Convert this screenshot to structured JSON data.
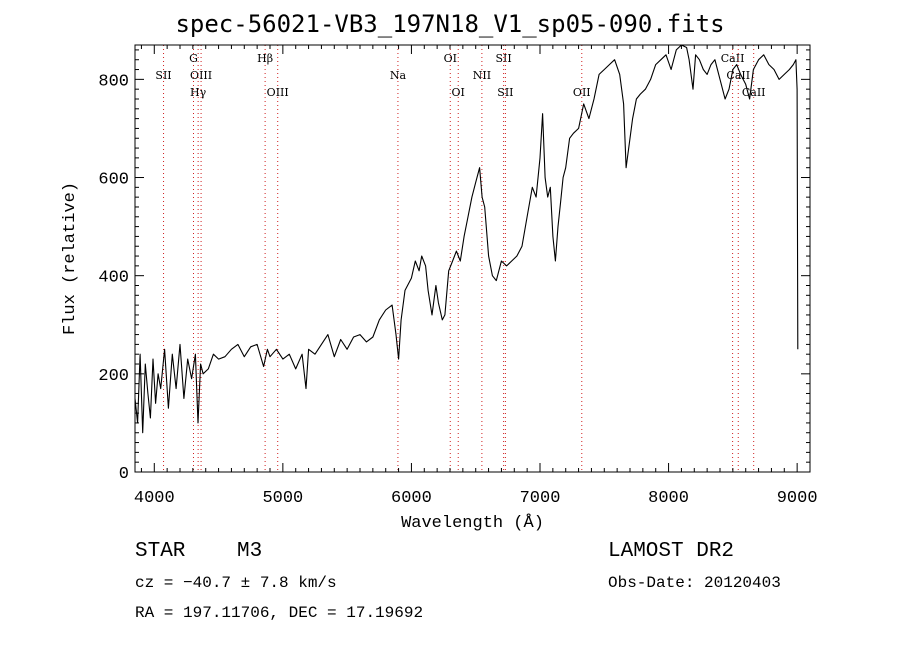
{
  "header": {
    "title": "spec-56021-VB3_197N18_V1_sp05-090.fits"
  },
  "footer": {
    "object_class": "STAR",
    "subclass": "M3",
    "survey": "LAMOST DR2",
    "redshift_text": "cz = −40.7 ± 7.8 km/s",
    "obs_date": "Obs-Date: 20120403",
    "coords": "RA = 197.11706, DEC =  17.19692"
  },
  "chart_data": {
    "type": "line",
    "title": "spec-56021-VB3_197N18_V1_sp05-090.fits",
    "xlabel": "Wavelength (Å)",
    "ylabel": "Flux (relative)",
    "xlim": [
      3850,
      9100
    ],
    "ylim": [
      0,
      870
    ],
    "xticks": [
      4000,
      5000,
      6000,
      7000,
      8000,
      9000
    ],
    "yticks": [
      0,
      200,
      400,
      600,
      800
    ],
    "series": [
      {
        "name": "flux",
        "x": [
          3850,
          3870,
          3890,
          3910,
          3930,
          3950,
          3970,
          3990,
          4010,
          4030,
          4050,
          4080,
          4110,
          4140,
          4170,
          4200,
          4230,
          4260,
          4290,
          4320,
          4340,
          4360,
          4380,
          4420,
          4460,
          4500,
          4550,
          4600,
          4650,
          4700,
          4750,
          4800,
          4850,
          4880,
          4900,
          4950,
          5000,
          5050,
          5100,
          5150,
          5180,
          5200,
          5250,
          5300,
          5350,
          5400,
          5450,
          5500,
          5550,
          5600,
          5650,
          5700,
          5750,
          5800,
          5850,
          5880,
          5900,
          5920,
          5950,
          6000,
          6030,
          6060,
          6080,
          6110,
          6130,
          6160,
          6190,
          6210,
          6240,
          6260,
          6290,
          6320,
          6350,
          6380,
          6410,
          6440,
          6470,
          6500,
          6530,
          6550,
          6570,
          6600,
          6630,
          6660,
          6700,
          6740,
          6780,
          6820,
          6860,
          6900,
          6940,
          6970,
          7000,
          7020,
          7040,
          7060,
          7080,
          7100,
          7120,
          7140,
          7160,
          7180,
          7200,
          7230,
          7260,
          7300,
          7340,
          7380,
          7420,
          7460,
          7500,
          7540,
          7580,
          7620,
          7650,
          7670,
          7700,
          7720,
          7750,
          7780,
          7820,
          7860,
          7900,
          7940,
          7980,
          8020,
          8060,
          8100,
          8140,
          8160,
          8190,
          8210,
          8240,
          8270,
          8300,
          8330,
          8360,
          8400,
          8440,
          8470,
          8500,
          8530,
          8560,
          8600,
          8630,
          8660,
          8700,
          8740,
          8780,
          8820,
          8860,
          8900,
          8940,
          8970,
          8990,
          9000,
          9005
        ],
        "y": [
          150,
          100,
          240,
          80,
          220,
          160,
          110,
          230,
          140,
          200,
          170,
          250,
          130,
          240,
          170,
          260,
          150,
          230,
          190,
          240,
          100,
          220,
          200,
          210,
          240,
          230,
          235,
          250,
          260,
          235,
          255,
          260,
          215,
          250,
          235,
          250,
          230,
          240,
          210,
          240,
          170,
          250,
          240,
          260,
          280,
          235,
          270,
          250,
          275,
          280,
          265,
          275,
          310,
          330,
          340,
          280,
          230,
          310,
          370,
          395,
          430,
          410,
          440,
          420,
          370,
          320,
          380,
          345,
          310,
          320,
          410,
          430,
          450,
          430,
          480,
          520,
          560,
          590,
          620,
          560,
          540,
          440,
          400,
          390,
          430,
          420,
          430,
          440,
          460,
          520,
          580,
          560,
          640,
          730,
          600,
          560,
          580,
          480,
          430,
          500,
          550,
          600,
          620,
          680,
          690,
          700,
          750,
          720,
          760,
          810,
          820,
          830,
          840,
          810,
          750,
          620,
          680,
          720,
          760,
          770,
          780,
          800,
          830,
          840,
          850,
          820,
          860,
          870,
          865,
          840,
          780,
          850,
          840,
          820,
          810,
          830,
          840,
          800,
          760,
          780,
          820,
          830,
          810,
          790,
          760,
          820,
          840,
          850,
          830,
          820,
          800,
          810,
          820,
          830,
          840,
          780,
          250
        ]
      }
    ],
    "lines": [
      {
        "label": "SII",
        "wl": 4072,
        "row": 1
      },
      {
        "label": "G",
        "wl": 4305,
        "row": 0
      },
      {
        "label": "OIII",
        "wl": 4364,
        "row": 1
      },
      {
        "label": "Hγ",
        "wl": 4341,
        "row": 2
      },
      {
        "label": "Hβ",
        "wl": 4862,
        "row": 0
      },
      {
        "label": "OIII",
        "wl": 4960,
        "row": 2
      },
      {
        "label": "Na",
        "wl": 5895,
        "row": 1
      },
      {
        "label": "OI",
        "wl": 6302,
        "row": 0
      },
      {
        "label": "OI",
        "wl": 6364,
        "row": 2
      },
      {
        "label": "NII",
        "wl": 6548,
        "row": 1
      },
      {
        "label": "SII",
        "wl": 6717,
        "row": 0
      },
      {
        "label": "SII",
        "wl": 6731,
        "row": 2
      },
      {
        "label": "OII",
        "wl": 7325,
        "row": 2
      },
      {
        "label": "CaII",
        "wl": 8498,
        "row": 0
      },
      {
        "label": "CaII",
        "wl": 8542,
        "row": 1
      },
      {
        "label": "CaII",
        "wl": 8662,
        "row": 2
      }
    ]
  }
}
